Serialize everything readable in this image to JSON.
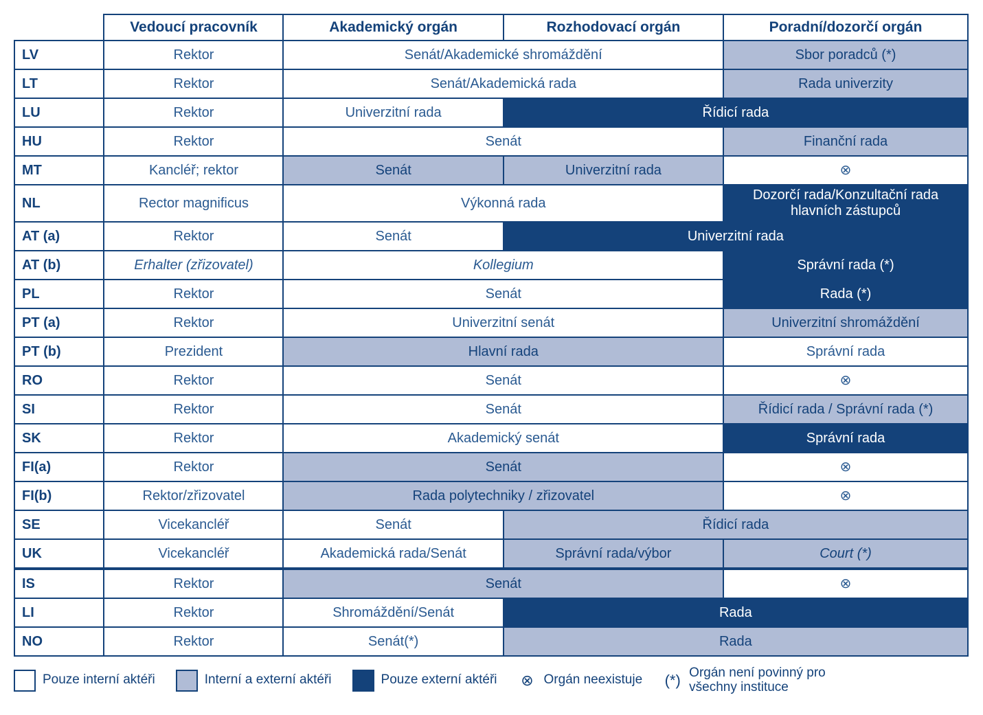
{
  "colors": {
    "border": "#14427a",
    "text_dark": "#14427a",
    "text_body": "#2a5a91",
    "bg_white": "#ffffff",
    "bg_mix": "#b0bcd6",
    "bg_dark": "#14427a"
  },
  "columns": [
    "Vedoucí pracovník",
    "Akademický orgán",
    "Rozhodovací orgán",
    "Poradní/dozorčí orgán"
  ],
  "no_organ_symbol": "⊗",
  "rows": [
    {
      "code": "LV",
      "cells": [
        {
          "t": "Rektor",
          "b": "white",
          "s": 1
        },
        {
          "t": "Senát/Akademické shromáždění",
          "b": "white",
          "s": 2
        },
        {
          "t": "Sbor poradců (*)",
          "b": "mix",
          "s": 1
        }
      ]
    },
    {
      "code": "LT",
      "cells": [
        {
          "t": "Rektor",
          "b": "white",
          "s": 1
        },
        {
          "t": "Senát/Akademická rada",
          "b": "white",
          "s": 2
        },
        {
          "t": "Rada univerzity",
          "b": "mix",
          "s": 1
        }
      ]
    },
    {
      "code": "LU",
      "cells": [
        {
          "t": "Rektor",
          "b": "white",
          "s": 1
        },
        {
          "t": "Univerzitní rada",
          "b": "white",
          "s": 1
        },
        {
          "t": "Řídicí rada",
          "b": "dark",
          "s": 2
        }
      ]
    },
    {
      "code": "HU",
      "cells": [
        {
          "t": "Rektor",
          "b": "white",
          "s": 1
        },
        {
          "t": "Senát",
          "b": "white",
          "s": 2
        },
        {
          "t": "Finanční rada",
          "b": "mix",
          "s": 1
        }
      ]
    },
    {
      "code": "MT",
      "cells": [
        {
          "t": "Kancléř; rektor",
          "b": "white",
          "s": 1
        },
        {
          "t": "Senát",
          "b": "mix",
          "s": 1
        },
        {
          "t": "Univerzitní rada",
          "b": "mix",
          "s": 1
        },
        {
          "t": "⊗",
          "b": "white",
          "s": 1
        }
      ]
    },
    {
      "code": "NL",
      "cells": [
        {
          "t": "Rector magnificus",
          "b": "white",
          "s": 1
        },
        {
          "t": "Výkonná rada",
          "b": "white",
          "s": 2
        },
        {
          "t": "Dozorčí rada/Konzultační rada hlavních zástupců",
          "b": "dark",
          "s": 1
        }
      ]
    },
    {
      "code": "AT (a)",
      "cells": [
        {
          "t": "Rektor",
          "b": "white",
          "s": 1
        },
        {
          "t": "Senát",
          "b": "white",
          "s": 1
        },
        {
          "t": "Univerzitní rada",
          "b": "dark",
          "s": 2
        }
      ]
    },
    {
      "code": "AT (b)",
      "cells": [
        {
          "t": "Erhalter (zřizovatel)",
          "b": "white",
          "s": 1,
          "i": true
        },
        {
          "t": "Kollegium",
          "b": "white",
          "s": 2,
          "i": true
        },
        {
          "t": "Správní rada (*)",
          "b": "dark",
          "s": 1
        }
      ]
    },
    {
      "code": "PL",
      "cells": [
        {
          "t": "Rektor",
          "b": "white",
          "s": 1
        },
        {
          "t": "Senát",
          "b": "white",
          "s": 2
        },
        {
          "t": "Rada (*)",
          "b": "dark",
          "s": 1
        }
      ]
    },
    {
      "code": "PT (a)",
      "cells": [
        {
          "t": "Rektor",
          "b": "white",
          "s": 1
        },
        {
          "t": "Univerzitní senát",
          "b": "white",
          "s": 2
        },
        {
          "t": "Univerzitní shromáždění",
          "b": "mix",
          "s": 1
        }
      ]
    },
    {
      "code": "PT (b)",
      "cells": [
        {
          "t": "Prezident",
          "b": "white",
          "s": 1
        },
        {
          "t": "Hlavní rada",
          "b": "mix",
          "s": 2
        },
        {
          "t": "Správní rada",
          "b": "white",
          "s": 1
        }
      ]
    },
    {
      "code": "RO",
      "cells": [
        {
          "t": "Rektor",
          "b": "white",
          "s": 1
        },
        {
          "t": "Senát",
          "b": "white",
          "s": 2
        },
        {
          "t": "⊗",
          "b": "white",
          "s": 1
        }
      ]
    },
    {
      "code": "SI",
      "cells": [
        {
          "t": "Rektor",
          "b": "white",
          "s": 1
        },
        {
          "t": "Senát",
          "b": "white",
          "s": 2
        },
        {
          "t": "Řídicí rada / Správní rada (*)",
          "b": "mix",
          "s": 1
        }
      ]
    },
    {
      "code": "SK",
      "cells": [
        {
          "t": "Rektor",
          "b": "white",
          "s": 1
        },
        {
          "t": "Akademický senát",
          "b": "white",
          "s": 2
        },
        {
          "t": "Správní rada",
          "b": "dark",
          "s": 1
        }
      ]
    },
    {
      "code": "FI(a)",
      "cells": [
        {
          "t": "Rektor",
          "b": "white",
          "s": 1
        },
        {
          "t": "Senát",
          "b": "mix",
          "s": 2
        },
        {
          "t": "⊗",
          "b": "white",
          "s": 1
        }
      ]
    },
    {
      "code": "FI(b)",
      "cells": [
        {
          "t": "Rektor/zřizovatel",
          "b": "white",
          "s": 1
        },
        {
          "t": "Rada polytechniky / zřizovatel",
          "b": "mix",
          "s": 2
        },
        {
          "t": "⊗",
          "b": "white",
          "s": 1
        }
      ]
    },
    {
      "code": "SE",
      "cells": [
        {
          "t": "Vicekancléř",
          "b": "white",
          "s": 1
        },
        {
          "t": "Senát",
          "b": "white",
          "s": 1
        },
        {
          "t": "Řídicí rada",
          "b": "mix",
          "s": 2
        }
      ]
    },
    {
      "code": "UK",
      "cells": [
        {
          "t": "Vicekancléř",
          "b": "white",
          "s": 1
        },
        {
          "t": "Akademická rada/Senát",
          "b": "white",
          "s": 1
        },
        {
          "t": "Správní rada/výbor",
          "b": "mix",
          "s": 1
        },
        {
          "t": "Court (*)",
          "b": "mix",
          "s": 1,
          "i": true
        }
      ]
    },
    {
      "code": "IS",
      "sep": true,
      "cells": [
        {
          "t": "Rektor",
          "b": "white",
          "s": 1
        },
        {
          "t": "Senát",
          "b": "mix",
          "s": 2
        },
        {
          "t": "⊗",
          "b": "white",
          "s": 1
        }
      ]
    },
    {
      "code": "LI",
      "cells": [
        {
          "t": "Rektor",
          "b": "white",
          "s": 1
        },
        {
          "t": "Shromáždění/Senát",
          "b": "white",
          "s": 1
        },
        {
          "t": "Rada",
          "b": "dark",
          "s": 2
        }
      ]
    },
    {
      "code": "NO",
      "cells": [
        {
          "t": "Rektor",
          "b": "white",
          "s": 1
        },
        {
          "t": "Senát(*)",
          "b": "white",
          "s": 1
        },
        {
          "t": "Rada",
          "b": "mix",
          "s": 2
        }
      ]
    }
  ],
  "legend": [
    {
      "type": "swatch",
      "swatch": "white",
      "text": "Pouze interní aktéři"
    },
    {
      "type": "swatch",
      "swatch": "mix",
      "text": "Interní a externí aktéři"
    },
    {
      "type": "swatch",
      "swatch": "dark",
      "text": "Pouze externí aktéři"
    },
    {
      "type": "symbol",
      "symbol": "⊗",
      "text": "Orgán neexistuje"
    },
    {
      "type": "symbol",
      "symbol": "(*)",
      "text": "Orgán není povinný pro všechny instituce"
    }
  ]
}
